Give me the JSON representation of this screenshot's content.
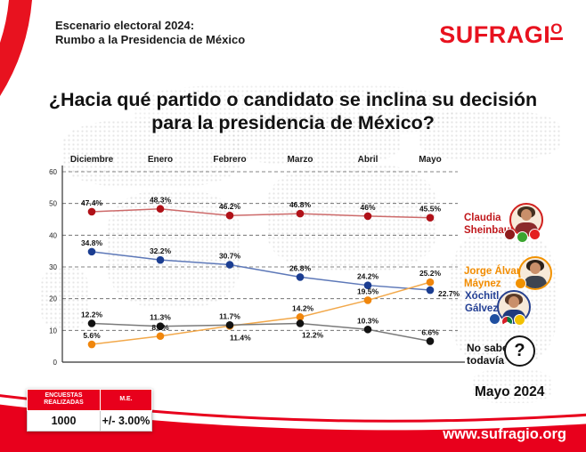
{
  "header": {
    "subtitle_line1": "Escenario electoral 2024:",
    "subtitle_line2": "Rumbo a la Presidencia de México",
    "logo_main": "SUFRAGI",
    "logo_o": "O"
  },
  "title": {
    "line1": "¿Hacia qué partido o candidato se inclina su decisión",
    "line2": "para la presidencia de México?"
  },
  "chart_data": {
    "type": "line",
    "title": "¿Hacia qué partido o candidato se inclina su decisión para la presidencia de México?",
    "categories": [
      "Diciembre",
      "Enero",
      "Febrero",
      "Marzo",
      "Abril",
      "Mayo"
    ],
    "ylim": [
      0,
      60
    ],
    "yticks": [
      0,
      10,
      20,
      30,
      40,
      50,
      60
    ],
    "grid": "horizontal-dashed",
    "legend_position": "right",
    "series": [
      {
        "name": "Claudia Sheinbaum",
        "marker_color": "#b01118",
        "line_color": "#cd6a6a",
        "values": [
          47.4,
          48.3,
          46.2,
          46.8,
          46,
          45.5
        ],
        "labels": [
          "47.4%",
          "48.3%",
          "46.2%",
          "46.8%",
          "46%",
          "45.5%"
        ]
      },
      {
        "name": "Xóchitl Gálvez",
        "marker_color": "#1b3d91",
        "line_color": "#5d78b8",
        "values": [
          34.8,
          32.2,
          30.7,
          26.8,
          24.2,
          22.7
        ],
        "labels": [
          "34.8%",
          "32.2%",
          "30.7%",
          "26.8%",
          "24.2%",
          "22.7%"
        ]
      },
      {
        "name": "Jorge Álvarez Máynez",
        "marker_color": "#f0860c",
        "line_color": "#f2a84a",
        "values": [
          5.6,
          8.2,
          11.4,
          14.2,
          19.5,
          25.2
        ],
        "labels": [
          "5.6%",
          "8.2%",
          "11.4%",
          "14.2%",
          "19.5%",
          "25.2%"
        ]
      },
      {
        "name": "No sabe todavía",
        "marker_color": "#121212",
        "line_color": "#7a7a7a",
        "values": [
          12.2,
          11.3,
          11.7,
          12.2,
          10.3,
          6.6
        ],
        "labels": [
          "12.2%",
          "11.3%",
          "11.7%",
          "12.2%",
          "10.3%",
          "6.6%"
        ]
      }
    ]
  },
  "legend": {
    "items": [
      {
        "name_line1": "Claudia",
        "name_line2": "Sheinbaum",
        "color": "#c0181c"
      },
      {
        "name_line1": "Jorge Álvarez",
        "name_line2": "Máynez",
        "color": "#f28c00"
      },
      {
        "name_line1": "Xóchitl",
        "name_line2": "Gálvez",
        "color": "#233f94"
      },
      {
        "name_line1": "No sabe",
        "name_line2": "todavía",
        "color": "#111111"
      }
    ],
    "no_sabe_symbol": "?"
  },
  "stats_table": {
    "col1_header": "ENCUESTAS REALIZADAS",
    "col2_header": "M.E.",
    "col1_value": "1000",
    "col2_value": "+/- 3.00%"
  },
  "footer": {
    "date": "Mayo 2024",
    "website": "www.sufragio.org"
  },
  "colors": {
    "brand_red": "#e8001c",
    "sheinbaum": "#b01118",
    "galvez": "#1b3d91",
    "maynez": "#f0860c",
    "no_sabe": "#121212"
  }
}
